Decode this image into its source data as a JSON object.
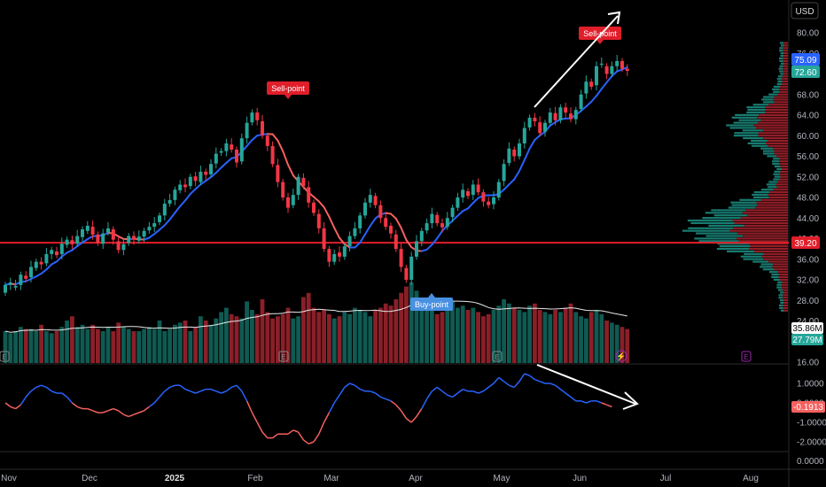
{
  "chart_data": [
    {
      "type": "candlestick",
      "currency": "USD",
      "price_axis_ticks": [
        80.0,
        76.0,
        72.0,
        68.0,
        64.0,
        60.0,
        56.0,
        52.0,
        48.0,
        44.0,
        40.0,
        36.0,
        32.0,
        28.0,
        24.0,
        20.0,
        16.0
      ],
      "time_axis_labels": [
        "Nov",
        "Dec",
        "2025",
        "Feb",
        "Mar",
        "Apr",
        "May",
        "Jun",
        "Jul",
        "Aug"
      ],
      "price_badges": {
        "ma": "75.09",
        "last": "72.60",
        "support": "39.20"
      },
      "volume_badges": {
        "ma": "35.86M",
        "last": "27.79M"
      },
      "support_level": 39.2,
      "annotations": {
        "sell_1": "Sell-point",
        "sell_2": "Sell-point",
        "buy": "Buy-point"
      },
      "event_markers": [
        "E",
        "E",
        "E",
        "E"
      ],
      "candles": [
        [
          29.5,
          31.0
        ],
        [
          31.0,
          31.5
        ],
        [
          30.5,
          30.8
        ],
        [
          31.0,
          33.0
        ],
        [
          32.8,
          32.2
        ],
        [
          32.5,
          34.5
        ],
        [
          34.3,
          35.5
        ],
        [
          35.5,
          35.0
        ],
        [
          35.2,
          37.0
        ],
        [
          37.0,
          37.8
        ],
        [
          37.5,
          36.8
        ],
        [
          37.0,
          39.0
        ],
        [
          38.8,
          39.8
        ],
        [
          39.7,
          38.9
        ],
        [
          39.0,
          40.5
        ],
        [
          40.3,
          41.8
        ],
        [
          41.5,
          42.5
        ],
        [
          42.3,
          40.8
        ],
        [
          40.8,
          39.2
        ],
        [
          39.0,
          41.0
        ],
        [
          41.2,
          42.0
        ],
        [
          41.8,
          39.8
        ],
        [
          39.5,
          37.8
        ],
        [
          37.8,
          38.9
        ],
        [
          39.2,
          40.5
        ],
        [
          40.5,
          39.8
        ],
        [
          39.6,
          40.4
        ],
        [
          40.4,
          41.5
        ],
        [
          41.6,
          42.3
        ],
        [
          42.3,
          43.0
        ],
        [
          43.2,
          44.5
        ],
        [
          44.5,
          46.8
        ],
        [
          46.8,
          47.5
        ],
        [
          47.5,
          49.5
        ],
        [
          49.4,
          50.5
        ],
        [
          50.5,
          50.0
        ],
        [
          50.2,
          52.0
        ],
        [
          52.1,
          51.2
        ],
        [
          51.0,
          53.0
        ],
        [
          53.0,
          52.4
        ],
        [
          52.5,
          54.5
        ],
        [
          54.6,
          56.5
        ],
        [
          56.7,
          57.0
        ],
        [
          57.0,
          58.5
        ],
        [
          58.3,
          57.3
        ],
        [
          57.3,
          54.8
        ],
        [
          55.0,
          59.5
        ],
        [
          59.5,
          62.5
        ],
        [
          62.6,
          64.5
        ],
        [
          64.5,
          63.0
        ],
        [
          62.8,
          60.0
        ],
        [
          60.0,
          58.0
        ],
        [
          58.0,
          54.5
        ],
        [
          54.3,
          51.0
        ],
        [
          51.0,
          48.0
        ],
        [
          48.0,
          46.0
        ],
        [
          46.5,
          48.5
        ],
        [
          48.5,
          52.0
        ],
        [
          51.8,
          50.2
        ],
        [
          50.0,
          47.0
        ],
        [
          47.0,
          45.0
        ],
        [
          44.8,
          42.0
        ],
        [
          42.0,
          38.0
        ],
        [
          38.0,
          35.5
        ],
        [
          35.5,
          37.0
        ],
        [
          37.3,
          36.5
        ],
        [
          36.5,
          38.5
        ],
        [
          38.5,
          40.5
        ],
        [
          40.5,
          42.0
        ],
        [
          42.0,
          44.5
        ],
        [
          44.5,
          47.0
        ],
        [
          47.0,
          48.5
        ],
        [
          48.3,
          46.5
        ],
        [
          46.5,
          44.0
        ],
        [
          44.0,
          42.3
        ],
        [
          42.5,
          41.0
        ],
        [
          40.8,
          38.0
        ],
        [
          38.0,
          34.5
        ],
        [
          34.3,
          32.0
        ],
        [
          32.0,
          36.5
        ],
        [
          36.5,
          39.5
        ],
        [
          39.5,
          41.5
        ],
        [
          41.6,
          43.0
        ],
        [
          43.0,
          44.8
        ],
        [
          44.6,
          43.0
        ],
        [
          43.0,
          42.2
        ],
        [
          42.3,
          44.0
        ],
        [
          44.2,
          46.0
        ],
        [
          46.0,
          48.0
        ],
        [
          48.0,
          49.5
        ],
        [
          49.2,
          48.3
        ],
        [
          48.5,
          50.5
        ],
        [
          50.5,
          49.0
        ],
        [
          49.0,
          47.2
        ],
        [
          47.2,
          46.5
        ],
        [
          46.7,
          48.0
        ],
        [
          48.0,
          51.0
        ],
        [
          51.2,
          54.5
        ],
        [
          54.7,
          57.5
        ],
        [
          57.3,
          56.0
        ],
        [
          56.0,
          58.5
        ],
        [
          58.5,
          61.5
        ],
        [
          61.6,
          63.5
        ],
        [
          63.5,
          62.8
        ],
        [
          62.6,
          60.5
        ],
        [
          60.8,
          62.5
        ],
        [
          62.5,
          64.5
        ],
        [
          64.4,
          63.0
        ],
        [
          63.0,
          65.5
        ],
        [
          65.5,
          64.5
        ],
        [
          64.3,
          63.2
        ],
        [
          63.2,
          65.0
        ],
        [
          65.2,
          68.0
        ],
        [
          68.2,
          70.5
        ],
        [
          70.5,
          69.5
        ],
        [
          69.8,
          73.5
        ],
        [
          73.8,
          74.0
        ],
        [
          73.5,
          72.0
        ],
        [
          72.0,
          73.5
        ],
        [
          73.5,
          74.5
        ],
        [
          74.5,
          73.0
        ],
        [
          73.0,
          72.6
        ]
      ],
      "volume": [
        15,
        14,
        15,
        17,
        16,
        16,
        15,
        18,
        15,
        14,
        15,
        17,
        20,
        22,
        17,
        18,
        16,
        18,
        16,
        15,
        17,
        15,
        19,
        17,
        16,
        15,
        15,
        16,
        17,
        16,
        20,
        15,
        16,
        18,
        19,
        20,
        15,
        17,
        22,
        20,
        18,
        21,
        24,
        26,
        23,
        22,
        21,
        29,
        25,
        23,
        30,
        24,
        21,
        22,
        23,
        26,
        21,
        22,
        31,
        33,
        26,
        24,
        25,
        23,
        21,
        22,
        24,
        23,
        26,
        25,
        24,
        22,
        25,
        26,
        28,
        27,
        30,
        33,
        36,
        38,
        34,
        30,
        28,
        25,
        23,
        24,
        26,
        29,
        26,
        27,
        25,
        26,
        24,
        22,
        23,
        25,
        27,
        30,
        28,
        26,
        25,
        24,
        27,
        28,
        25,
        24,
        23,
        25,
        24,
        26,
        28,
        24,
        22,
        21,
        24,
        25,
        23,
        20,
        19,
        18,
        17,
        16
      ],
      "oscillator": {
        "label": "-0.1913",
        "axis_ticks": [
          "1.0000",
          "0.0000",
          "-1.0000",
          "-2.0000"
        ],
        "lower_axis_ticks": [
          "0.0000"
        ],
        "values": [
          0.0,
          -0.2,
          -0.3,
          -0.1,
          0.3,
          0.6,
          0.8,
          0.9,
          0.8,
          0.6,
          0.5,
          0.5,
          0.3,
          0.0,
          -0.2,
          -0.3,
          -0.3,
          -0.4,
          -0.5,
          -0.5,
          -0.4,
          -0.3,
          -0.4,
          -0.6,
          -0.7,
          -0.6,
          -0.5,
          -0.4,
          -0.2,
          0.0,
          0.3,
          0.6,
          0.8,
          0.9,
          0.9,
          0.7,
          0.6,
          0.5,
          0.6,
          0.7,
          0.7,
          0.6,
          0.5,
          0.6,
          0.8,
          0.9,
          0.6,
          0.1,
          -0.5,
          -1.0,
          -1.5,
          -1.8,
          -1.8,
          -1.6,
          -1.6,
          -1.6,
          -1.4,
          -1.5,
          -1.9,
          -2.1,
          -2.0,
          -1.6,
          -1.0,
          -0.5,
          0.0,
          0.4,
          0.8,
          1.0,
          0.9,
          0.7,
          0.6,
          0.6,
          0.5,
          0.3,
          0.2,
          0.1,
          -0.1,
          -0.4,
          -0.8,
          -1.0,
          -0.7,
          -0.3,
          0.2,
          0.6,
          0.8,
          0.6,
          0.4,
          0.3,
          0.5,
          0.7,
          0.6,
          0.6,
          0.5,
          0.6,
          0.8,
          1.0,
          1.3,
          1.1,
          0.9,
          0.8,
          1.1,
          1.5,
          1.4,
          1.2,
          1.1,
          1.0,
          1.0,
          0.9,
          0.7,
          0.5,
          0.3,
          0.1,
          0.1,
          0.0,
          0.1,
          0.1,
          0.0,
          -0.1,
          -0.2
        ]
      }
    }
  ]
}
